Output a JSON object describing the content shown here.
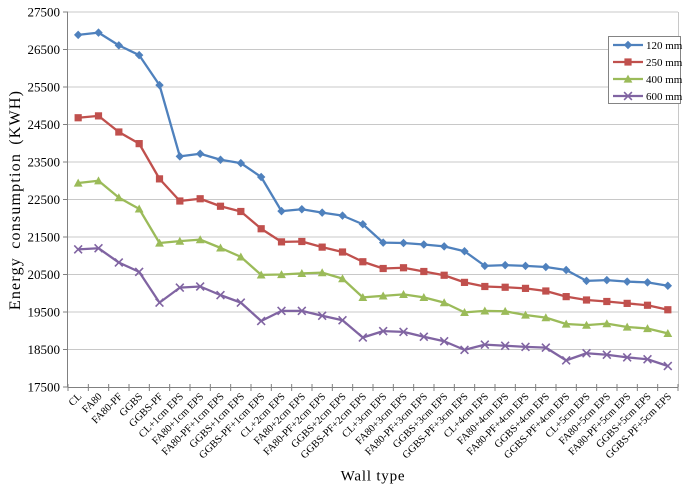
{
  "chart_data": {
    "type": "line",
    "title": "",
    "xlabel": "Wall type",
    "ylabel": "Energy consumption (KWH)",
    "ylim": [
      17500,
      27500
    ],
    "yticks": [
      17500,
      18500,
      19500,
      20500,
      21500,
      22500,
      23500,
      24500,
      25500,
      26500,
      27500
    ],
    "grid": "horizontal",
    "legend_position": "top-right-inside",
    "categories": [
      "CL",
      "FA80",
      "FA80-PF",
      "GGBS",
      "GGBS-PF",
      "CL+1cm EPS",
      "FA80+1cm EPS",
      "FA80-PF+1cm EPS",
      "GGBS+1cm EPS",
      "GGBS-PF+1cm EPS",
      "CL+2cm EPS",
      "FA80+2cm EPS",
      "FA80-PF+2cm EPS",
      "GGBS+2cm EPS",
      "GGBS-PF+2cm EPS",
      "CL+3cm EPS",
      "FA80+3cm EPS",
      "FA80-PF+3cm EPS",
      "GGBS+3cm EPS",
      "GGBS-PF+3cm EPS",
      "CL+4cm EPS",
      "FA80+4cm EPS",
      "FA80-PF+4cm EPS",
      "GGBS+4cm EPS",
      "GGBS-PF+4cm EPS",
      "CL+5cm EPS",
      "FA80+5cm EPS",
      "FA80-PF+5cm EPS",
      "GGBS+5cm EPS",
      "GGBS-PF+5cm EPS"
    ],
    "series": [
      {
        "name": "120 mm",
        "color": "#4F81BD",
        "marker": "diamond",
        "values": [
          26890,
          26950,
          26610,
          26350,
          25550,
          23650,
          23720,
          23560,
          23470,
          23100,
          22190,
          22240,
          22150,
          22070,
          21840,
          21350,
          21340,
          21300,
          21250,
          21120,
          20730,
          20750,
          20730,
          20700,
          20620,
          20330,
          20350,
          20310,
          20290,
          20200
        ]
      },
      {
        "name": "250 mm",
        "color": "#C0504D",
        "marker": "square",
        "values": [
          24680,
          24730,
          24300,
          23990,
          23050,
          22460,
          22520,
          22320,
          22180,
          21720,
          21370,
          21380,
          21230,
          21100,
          20840,
          20660,
          20680,
          20580,
          20480,
          20290,
          20180,
          20160,
          20130,
          20060,
          19910,
          19820,
          19780,
          19730,
          19680,
          19560
        ]
      },
      {
        "name": "400 mm",
        "color": "#9BBB59",
        "marker": "triangle",
        "values": [
          22940,
          23000,
          22550,
          22250,
          21340,
          21390,
          21430,
          21210,
          20970,
          20490,
          20500,
          20530,
          20550,
          20390,
          19890,
          19930,
          19970,
          19890,
          19750,
          19490,
          19530,
          19520,
          19420,
          19350,
          19180,
          19150,
          19190,
          19100,
          19060,
          18930
        ]
      },
      {
        "name": "600 mm",
        "color": "#8064A2",
        "marker": "x",
        "values": [
          21170,
          21200,
          20820,
          20570,
          19750,
          20150,
          20180,
          19950,
          19750,
          19260,
          19530,
          19530,
          19400,
          19280,
          18820,
          18990,
          18970,
          18840,
          18720,
          18490,
          18630,
          18600,
          18570,
          18550,
          18210,
          18400,
          18360,
          18290,
          18240,
          18060
        ]
      }
    ]
  }
}
